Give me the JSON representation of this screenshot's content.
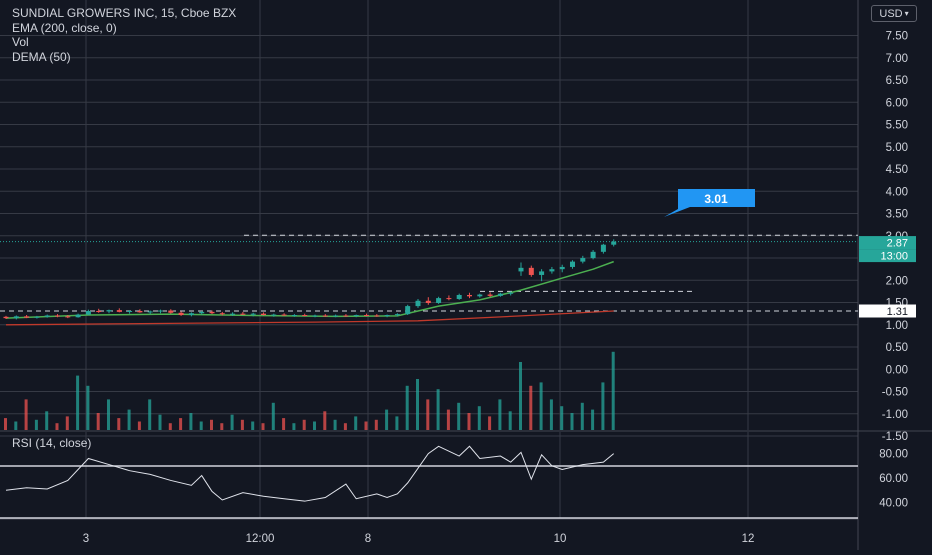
{
  "legend": {
    "symbol_line": "SUNDIAL GROWERS INC, 15, Cboe BZX",
    "indicators": [
      "EMA (200, close, 0)",
      "Vol",
      "DEMA (50)"
    ]
  },
  "currency_button": {
    "label": "USD",
    "icon": "chevron-down-icon"
  },
  "rsi_legend": "RSI (14, close)",
  "colors": {
    "background": "#131722",
    "grid": "#363a45",
    "up": "#26a69a",
    "down": "#ef5350",
    "ema": "#c0392b",
    "dema": "#4caf50",
    "rsi_line": "#e0e3eb",
    "callout": "#2196f3",
    "price_tag": "#26a69a"
  },
  "chart_data": {
    "type": "candlestick",
    "x_ticks": [
      "3",
      "12:00",
      "8",
      "10",
      "12"
    ],
    "y_ticks": [
      "-1.50",
      "-1.00",
      "-0.50",
      "0.00",
      "0.50",
      "1.00",
      "1.50",
      "2.00",
      "2.50",
      "3.00",
      "3.50",
      "4.00",
      "4.50",
      "5.00",
      "5.50",
      "6.00",
      "6.50",
      "7.00",
      "7.50"
    ],
    "ylim": [
      -1.6,
      7.8
    ],
    "rsi_ticks": [
      "40.00",
      "60.00",
      "80.00"
    ],
    "rsi_levels": [
      70,
      30
    ],
    "rsi_ylim": [
      25,
      92
    ],
    "callout_value": "3.01",
    "price_tag": "2.87",
    "time_tag": "13:00",
    "ema_tag": "1.31",
    "levels": {
      "callout": 3.0,
      "mid": 1.75,
      "ema": 1.31
    },
    "candles": [
      [
        0,
        1.18,
        1.2,
        1.13,
        1.15
      ],
      [
        1,
        1.15,
        1.21,
        1.12,
        1.19
      ],
      [
        2,
        1.19,
        1.22,
        1.15,
        1.16
      ],
      [
        3,
        1.16,
        1.2,
        1.14,
        1.18
      ],
      [
        4,
        1.18,
        1.23,
        1.16,
        1.21
      ],
      [
        5,
        1.21,
        1.24,
        1.17,
        1.19
      ],
      [
        6,
        1.19,
        1.22,
        1.15,
        1.17
      ],
      [
        7,
        1.17,
        1.25,
        1.16,
        1.23
      ],
      [
        8,
        1.23,
        1.34,
        1.22,
        1.31
      ],
      [
        9,
        1.31,
        1.36,
        1.27,
        1.3
      ],
      [
        10,
        1.3,
        1.34,
        1.26,
        1.33
      ],
      [
        11,
        1.33,
        1.37,
        1.28,
        1.29
      ],
      [
        12,
        1.29,
        1.33,
        1.25,
        1.31
      ],
      [
        13,
        1.31,
        1.35,
        1.27,
        1.28
      ],
      [
        14,
        1.28,
        1.32,
        1.24,
        1.3
      ],
      [
        15,
        1.3,
        1.34,
        1.26,
        1.32
      ],
      [
        16,
        1.32,
        1.35,
        1.25,
        1.27
      ],
      [
        17,
        1.27,
        1.3,
        1.2,
        1.22
      ],
      [
        18,
        1.22,
        1.28,
        1.19,
        1.26
      ],
      [
        19,
        1.26,
        1.31,
        1.23,
        1.29
      ],
      [
        20,
        1.29,
        1.32,
        1.24,
        1.26
      ],
      [
        21,
        1.26,
        1.29,
        1.21,
        1.24
      ],
      [
        22,
        1.24,
        1.28,
        1.2,
        1.25
      ],
      [
        23,
        1.25,
        1.29,
        1.22,
        1.23
      ],
      [
        24,
        1.23,
        1.27,
        1.19,
        1.25
      ],
      [
        25,
        1.25,
        1.28,
        1.21,
        1.22
      ],
      [
        26,
        1.22,
        1.25,
        1.18,
        1.23
      ],
      [
        27,
        1.23,
        1.26,
        1.2,
        1.21
      ],
      [
        28,
        1.21,
        1.24,
        1.18,
        1.22
      ],
      [
        29,
        1.22,
        1.25,
        1.19,
        1.2
      ],
      [
        30,
        1.2,
        1.23,
        1.17,
        1.21
      ],
      [
        31,
        1.21,
        1.24,
        1.18,
        1.19
      ],
      [
        32,
        1.19,
        1.23,
        1.17,
        1.21
      ],
      [
        33,
        1.21,
        1.24,
        1.18,
        1.2
      ],
      [
        34,
        1.2,
        1.23,
        1.17,
        1.22
      ],
      [
        35,
        1.22,
        1.25,
        1.19,
        1.21
      ],
      [
        36,
        1.21,
        1.24,
        1.18,
        1.2
      ],
      [
        37,
        1.2,
        1.23,
        1.17,
        1.22
      ],
      [
        38,
        1.22,
        1.26,
        1.19,
        1.24
      ],
      [
        39,
        1.24,
        1.45,
        1.22,
        1.42
      ],
      [
        40,
        1.42,
        1.58,
        1.38,
        1.54
      ],
      [
        41,
        1.54,
        1.62,
        1.45,
        1.49
      ],
      [
        42,
        1.49,
        1.63,
        1.47,
        1.6
      ],
      [
        43,
        1.6,
        1.66,
        1.55,
        1.58
      ],
      [
        44,
        1.58,
        1.7,
        1.56,
        1.67
      ],
      [
        45,
        1.67,
        1.72,
        1.6,
        1.64
      ],
      [
        46,
        1.64,
        1.7,
        1.61,
        1.68
      ],
      [
        47,
        1.68,
        1.73,
        1.62,
        1.65
      ],
      [
        48,
        1.65,
        1.72,
        1.63,
        1.7
      ],
      [
        49,
        1.7,
        1.75,
        1.66,
        1.72
      ],
      [
        50,
        2.2,
        2.4,
        2.1,
        2.28
      ],
      [
        51,
        2.28,
        2.33,
        2.08,
        2.12
      ],
      [
        52,
        2.12,
        2.25,
        1.98,
        2.2
      ],
      [
        53,
        2.2,
        2.3,
        2.15,
        2.25
      ],
      [
        54,
        2.25,
        2.35,
        2.18,
        2.3
      ],
      [
        55,
        2.3,
        2.45,
        2.26,
        2.42
      ],
      [
        56,
        2.42,
        2.55,
        2.38,
        2.5
      ],
      [
        57,
        2.5,
        2.68,
        2.47,
        2.64
      ],
      [
        58,
        2.64,
        2.82,
        2.6,
        2.8
      ],
      [
        59,
        2.8,
        2.92,
        2.76,
        2.87
      ]
    ],
    "ema": [
      [
        0,
        1.0
      ],
      [
        10,
        1.02
      ],
      [
        20,
        1.04
      ],
      [
        30,
        1.06
      ],
      [
        40,
        1.09
      ],
      [
        50,
        1.2
      ],
      [
        59,
        1.31
      ]
    ],
    "dema": [
      [
        0,
        1.15
      ],
      [
        8,
        1.22
      ],
      [
        16,
        1.24
      ],
      [
        24,
        1.21
      ],
      [
        32,
        1.19
      ],
      [
        38,
        1.2
      ],
      [
        42,
        1.42
      ],
      [
        46,
        1.56
      ],
      [
        50,
        1.78
      ],
      [
        54,
        2.05
      ],
      [
        57,
        2.25
      ],
      [
        59,
        2.42
      ]
    ],
    "volume": [
      0.35,
      0.25,
      0.9,
      0.3,
      0.55,
      0.2,
      0.4,
      1.6,
      1.3,
      0.5,
      0.9,
      0.35,
      0.6,
      0.25,
      0.9,
      0.45,
      0.2,
      0.35,
      0.5,
      0.25,
      0.3,
      0.2,
      0.45,
      0.3,
      0.25,
      0.2,
      0.8,
      0.35,
      0.2,
      0.3,
      0.25,
      0.55,
      0.3,
      0.2,
      0.4,
      0.25,
      0.3,
      0.6,
      0.4,
      1.3,
      1.5,
      0.9,
      1.2,
      0.6,
      0.8,
      0.5,
      0.7,
      0.4,
      0.9,
      0.55,
      2.0,
      1.3,
      1.4,
      0.9,
      0.7,
      0.5,
      0.8,
      0.6,
      1.4,
      2.3
    ],
    "rsi": [
      [
        0,
        50
      ],
      [
        2,
        52
      ],
      [
        4,
        51
      ],
      [
        6,
        58
      ],
      [
        8,
        76
      ],
      [
        10,
        71
      ],
      [
        12,
        66
      ],
      [
        14,
        63
      ],
      [
        16,
        58
      ],
      [
        18,
        54
      ],
      [
        19,
        62
      ],
      [
        20,
        49
      ],
      [
        21,
        42
      ],
      [
        23,
        48
      ],
      [
        25,
        45
      ],
      [
        27,
        43
      ],
      [
        29,
        41
      ],
      [
        31,
        44
      ],
      [
        33,
        55
      ],
      [
        34,
        43
      ],
      [
        36,
        47
      ],
      [
        37,
        44
      ],
      [
        38,
        47
      ],
      [
        39,
        56
      ],
      [
        41,
        80
      ],
      [
        42,
        86
      ],
      [
        44,
        78
      ],
      [
        45,
        86
      ],
      [
        46,
        76
      ],
      [
        48,
        78
      ],
      [
        49,
        73
      ],
      [
        50,
        81
      ],
      [
        51,
        59
      ],
      [
        52,
        79
      ],
      [
        53,
        70
      ],
      [
        54,
        67
      ],
      [
        56,
        71
      ],
      [
        58,
        73
      ],
      [
        59,
        80
      ]
    ]
  }
}
